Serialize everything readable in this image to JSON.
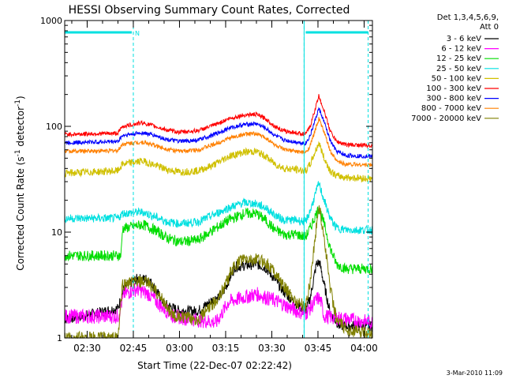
{
  "chart_data": {
    "type": "line",
    "title": "HESSI Observing Summary Count Rates, Corrected",
    "xlabel": "Start Time (22-Dec-07 02:22:42)",
    "ylabel_main": "Corrected Count Rate (s",
    "ylabel_sup1": "-1",
    "ylabel_mid": " detector",
    "ylabel_sup2": "-1",
    "ylabel_end": ")",
    "y_scale": "log",
    "ylim": [
      1,
      1000
    ],
    "xlim_minutes": [
      142.7,
      242.7
    ],
    "x_ticks": [
      {
        "m": 150,
        "label": "02:30"
      },
      {
        "m": 165,
        "label": "02:45"
      },
      {
        "m": 180,
        "label": "03:00"
      },
      {
        "m": 195,
        "label": "03:15"
      },
      {
        "m": 210,
        "label": "03:30"
      },
      {
        "m": 225,
        "label": "03:45"
      },
      {
        "m": 240,
        "label": "04:00"
      }
    ],
    "y_ticks": [
      {
        "v": 1,
        "label": "1"
      },
      {
        "v": 10,
        "label": "10"
      },
      {
        "v": 100,
        "label": "100"
      },
      {
        "v": 1000,
        "label": "1000"
      }
    ],
    "legend_header": [
      "Det 1,3,4,5,6,9,",
      "Att 0"
    ],
    "series": [
      {
        "name": "3 - 6 keV",
        "color": "#000000",
        "points": [
          [
            142.7,
            1.5
          ],
          [
            148,
            1.6
          ],
          [
            160,
            1.9
          ],
          [
            162,
            3.0
          ],
          [
            166,
            3.6
          ],
          [
            170,
            3.6
          ],
          [
            175,
            2.1
          ],
          [
            180,
            1.8
          ],
          [
            186,
            1.8
          ],
          [
            191,
            2.3
          ],
          [
            194,
            2.6
          ],
          [
            196,
            3.5
          ],
          [
            198,
            4.7
          ],
          [
            205,
            5.0
          ],
          [
            208,
            4.6
          ],
          [
            211,
            3.6
          ],
          [
            214,
            2.7
          ],
          [
            218,
            2.1
          ],
          [
            221,
            1.8
          ],
          [
            222.5,
            2.4
          ],
          [
            224.5,
            5.0
          ],
          [
            225.5,
            5.2
          ],
          [
            227,
            3.2
          ],
          [
            229,
            1.7
          ],
          [
            232,
            1.3
          ],
          [
            242.7,
            1.3
          ]
        ]
      },
      {
        "name": "6 - 12 keV",
        "color": "#ff00ff",
        "points": [
          [
            142.7,
            1.6
          ],
          [
            160,
            1.6
          ],
          [
            162,
            2.6
          ],
          [
            166,
            2.9
          ],
          [
            170,
            2.6
          ],
          [
            174,
            2.0
          ],
          [
            178,
            1.6
          ],
          [
            192,
            1.4
          ],
          [
            196,
            2.2
          ],
          [
            205,
            2.6
          ],
          [
            212,
            2.2
          ],
          [
            218,
            1.8
          ],
          [
            221,
            1.7
          ],
          [
            223,
            2.0
          ],
          [
            225,
            2.4
          ],
          [
            226,
            2.2
          ],
          [
            227,
            1.6
          ],
          [
            242.7,
            1.4
          ]
        ]
      },
      {
        "name": "12 - 25 keV",
        "color": "#00dd00",
        "points": [
          [
            142.7,
            6.0
          ],
          [
            161,
            6.0
          ],
          [
            161.5,
            10.8
          ],
          [
            168,
            11.8
          ],
          [
            172,
            10.5
          ],
          [
            176,
            8.8
          ],
          [
            180,
            8.1
          ],
          [
            186,
            8.4
          ],
          [
            191,
            10.5
          ],
          [
            196,
            13.0
          ],
          [
            201,
            15.0
          ],
          [
            205,
            15.0
          ],
          [
            208,
            13.0
          ],
          [
            211,
            10.5
          ],
          [
            214,
            9.5
          ],
          [
            218,
            9.5
          ],
          [
            221,
            9.0
          ],
          [
            222.5,
            11.0
          ],
          [
            225.3,
            17.0
          ],
          [
            227,
            12.0
          ],
          [
            229,
            7.0
          ],
          [
            231,
            5.0
          ],
          [
            234,
            4.5
          ],
          [
            242.7,
            4.5
          ]
        ]
      },
      {
        "name": "25 - 50 keV",
        "color": "#00e0e0",
        "points": [
          [
            142.7,
            13.5
          ],
          [
            160,
            13.5
          ],
          [
            161.5,
            15.0
          ],
          [
            168,
            15.5
          ],
          [
            172,
            14.0
          ],
          [
            176,
            12.5
          ],
          [
            180,
            12.0
          ],
          [
            186,
            12.5
          ],
          [
            191,
            14.5
          ],
          [
            196,
            17.0
          ],
          [
            201,
            19.0
          ],
          [
            205,
            18.5
          ],
          [
            208,
            17.0
          ],
          [
            211,
            14.5
          ],
          [
            214,
            13.0
          ],
          [
            218,
            13.0
          ],
          [
            221,
            12.5
          ],
          [
            222.5,
            16.0
          ],
          [
            225.3,
            29.0
          ],
          [
            227,
            20.0
          ],
          [
            229,
            13.5
          ],
          [
            231,
            11.0
          ],
          [
            234,
            10.5
          ],
          [
            242.7,
            10.5
          ]
        ]
      },
      {
        "name": "50 - 100 keV",
        "color": "#d0c000",
        "points": [
          [
            142.7,
            36
          ],
          [
            160,
            38
          ],
          [
            161.5,
            44
          ],
          [
            168,
            47
          ],
          [
            172,
            43
          ],
          [
            176,
            39
          ],
          [
            180,
            37
          ],
          [
            186,
            38
          ],
          [
            191,
            43
          ],
          [
            196,
            52
          ],
          [
            201,
            57
          ],
          [
            205,
            58
          ],
          [
            208,
            52
          ],
          [
            211,
            44
          ],
          [
            214,
            40
          ],
          [
            218,
            39
          ],
          [
            221,
            38
          ],
          [
            222.5,
            44
          ],
          [
            225.3,
            70
          ],
          [
            227,
            50
          ],
          [
            229,
            38
          ],
          [
            231,
            34
          ],
          [
            234,
            33
          ],
          [
            242.7,
            32
          ]
        ]
      },
      {
        "name": "100 - 300 keV",
        "color": "#ff0000",
        "points": [
          [
            142.7,
            84
          ],
          [
            160,
            86
          ],
          [
            161.5,
            100
          ],
          [
            168,
            108
          ],
          [
            172,
            100
          ],
          [
            176,
            92
          ],
          [
            180,
            88
          ],
          [
            186,
            91
          ],
          [
            191,
            102
          ],
          [
            196,
            118
          ],
          [
            201,
            128
          ],
          [
            205,
            130
          ],
          [
            208,
            118
          ],
          [
            211,
            100
          ],
          [
            214,
            90
          ],
          [
            218,
            87
          ],
          [
            221,
            84
          ],
          [
            222.5,
            100
          ],
          [
            225.3,
            195
          ],
          [
            227,
            140
          ],
          [
            229,
            90
          ],
          [
            231,
            72
          ],
          [
            234,
            67
          ],
          [
            242.7,
            66
          ]
        ]
      },
      {
        "name": "300 - 800 keV",
        "color": "#0000ff",
        "points": [
          [
            142.7,
            70
          ],
          [
            160,
            72
          ],
          [
            161.5,
            82
          ],
          [
            168,
            87
          ],
          [
            172,
            82
          ],
          [
            176,
            75
          ],
          [
            180,
            72
          ],
          [
            186,
            74
          ],
          [
            191,
            83
          ],
          [
            196,
            96
          ],
          [
            201,
            104
          ],
          [
            205,
            106
          ],
          [
            208,
            96
          ],
          [
            211,
            82
          ],
          [
            214,
            74
          ],
          [
            218,
            71
          ],
          [
            221,
            69
          ],
          [
            222.5,
            82
          ],
          [
            225.3,
            148
          ],
          [
            227,
            110
          ],
          [
            229,
            73
          ],
          [
            231,
            58
          ],
          [
            234,
            53
          ],
          [
            242.7,
            52
          ]
        ]
      },
      {
        "name": "800 - 7000 keV",
        "color": "#ff8000",
        "points": [
          [
            142.7,
            58
          ],
          [
            160,
            59
          ],
          [
            161.5,
            68
          ],
          [
            168,
            71
          ],
          [
            172,
            66
          ],
          [
            176,
            61
          ],
          [
            180,
            58
          ],
          [
            186,
            60
          ],
          [
            191,
            67
          ],
          [
            196,
            77
          ],
          [
            201,
            84
          ],
          [
            205,
            85
          ],
          [
            208,
            78
          ],
          [
            211,
            67
          ],
          [
            214,
            60
          ],
          [
            218,
            58
          ],
          [
            221,
            56
          ],
          [
            222.5,
            66
          ],
          [
            225.3,
            118
          ],
          [
            227,
            88
          ],
          [
            229,
            58
          ],
          [
            231,
            47
          ],
          [
            234,
            44
          ],
          [
            242.7,
            43
          ]
        ]
      },
      {
        "name": "7000 - 20000 keV",
        "color": "#808000",
        "points": [
          [
            142.7,
            1.0
          ],
          [
            160,
            1.0
          ],
          [
            161.5,
            3.2
          ],
          [
            166,
            3.4
          ],
          [
            170,
            3.3
          ],
          [
            174,
            2.4
          ],
          [
            178,
            1.6
          ],
          [
            186,
            1.5
          ],
          [
            191,
            2.1
          ],
          [
            194,
            2.8
          ],
          [
            197,
            4.4
          ],
          [
            200,
            5.5
          ],
          [
            205,
            5.5
          ],
          [
            208,
            5.2
          ],
          [
            211,
            4.2
          ],
          [
            214,
            3.0
          ],
          [
            218,
            2.2
          ],
          [
            221,
            2.0
          ],
          [
            222.5,
            3.5
          ],
          [
            225.3,
            18.0
          ],
          [
            227,
            9.0
          ],
          [
            229,
            3.0
          ],
          [
            231,
            1.5
          ],
          [
            234,
            1.2
          ],
          [
            242.7,
            1.1
          ]
        ]
      }
    ],
    "attenuator_marks": [
      165.0,
      220.5,
      241.3
    ],
    "attenuator_bars": [
      [
        142.7,
        164.5
      ],
      [
        221.0,
        241.3
      ]
    ],
    "marker_label": "N",
    "grid": false,
    "legend_position": "right"
  },
  "footer": {
    "date_stamp": "3-Mar-2010 11:09"
  }
}
